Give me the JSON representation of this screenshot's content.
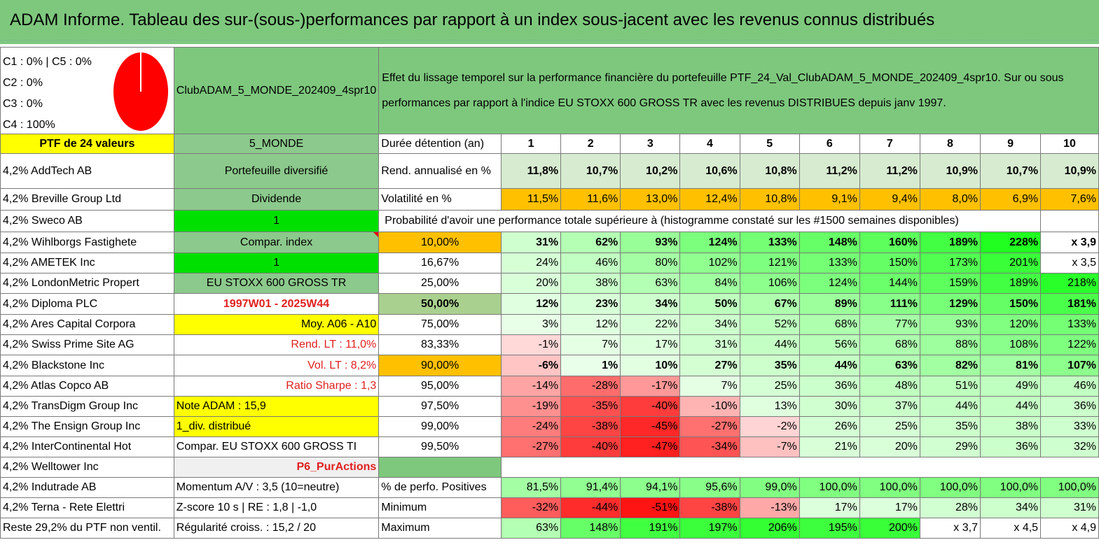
{
  "title": "ADAM Informe. Tableau des sur-(sous-)performances par rapport à un index sous-jacent avec les revenus connus distribués",
  "legend": {
    "c1c5": "C1 : 0% | C5 : 0%",
    "c2": "C2 : 0%",
    "c3": "C3 : 0%",
    "c4": "C4 : 100%"
  },
  "fund_name": "ClubADAM_5_MONDE_202409_4spr10",
  "description": "Effet du lissage temporel sur la performance financière du portefeuille PTF_24_Val_ClubADAM_5_MONDE_202409_4spr10. Sur ou sous performances par rapport à l'indice EU STOXX 600 GROSS TR avec les revenus DISTRIBUES depuis janv 1997.",
  "colors": {
    "green_header": "#7ec87e",
    "yellow": "#ffff00",
    "orange": "#ffc000",
    "bright_green": "#00e000",
    "red_text": "#e02020"
  },
  "left_col": {
    "header": "PTF de 24 valeurs",
    "holdings": [
      "4,2% AddTech AB",
      "4,2% Breville Group Ltd",
      "4,2% Sweco AB",
      "4,2% Wihlborgs Fastighete",
      "4,2% AMETEK Inc",
      "4,2% LondonMetric Propert",
      "4,2% Diploma PLC",
      "4,2% Ares Capital Corpora",
      "4,2% Swiss Prime Site AG",
      "4,2% Blackstone Inc",
      "4,2% Atlas Copco AB",
      "4,2% TransDigm Group Inc",
      "4,2% The Ensign Group Inc",
      "4,2% InterContinental Hot",
      "4,2% Welltower Inc",
      "4,2% Indutrade AB",
      "4,2% Terna - Rete Elettri",
      "Reste 29,2% du PTF non ventil."
    ]
  },
  "mid_col": {
    "header": "5_MONDE",
    "items": [
      "Portefeuille diversifié",
      "Dividende",
      "1",
      "Compar. index",
      "1",
      "EU STOXX 600 GROSS TR",
      "1997W01 - 2025W44",
      "Moy. A06 - A10",
      "Rend. LT : 11,0%",
      "Vol. LT : 8,2%",
      "Ratio Sharpe : 1,3",
      "Note ADAM : 15,9",
      "1_div. distribué",
      "Compar. EU STOXX 600 GROSS TI",
      "P6_PurActions",
      "Momentum A/V : 3,5 (10=neutre)",
      "Z-score 10 s | RE : 1,8 | -1,0",
      "Régularité croiss. : 15,2 / 20"
    ]
  },
  "grid": {
    "duration_label": "Durée détention (an)",
    "years": [
      "1",
      "2",
      "3",
      "4",
      "5",
      "6",
      "7",
      "8",
      "9",
      "10"
    ],
    "rend_label": "Rend. annualisé en %",
    "rend": [
      "11,8%",
      "10,7%",
      "10,2%",
      "10,6%",
      "10,8%",
      "11,2%",
      "11,2%",
      "10,9%",
      "10,7%",
      "10,9%"
    ],
    "vol_label": "Volatilité en %",
    "vol": [
      "11,5%",
      "11,6%",
      "13,0%",
      "12,4%",
      "10,8%",
      "9,1%",
      "9,4%",
      "8,0%",
      "6,9%",
      "7,6%"
    ],
    "prob_label": "Probabilité d'avoir une performance totale supérieure à (histogramme constaté sur les #1500 semaines disponibles)",
    "percentiles": [
      {
        "p": "10,00%",
        "v": [
          "31%",
          "62%",
          "93%",
          "124%",
          "133%",
          "148%",
          "160%",
          "189%",
          "228%",
          "x 3,9"
        ]
      },
      {
        "p": "16,67%",
        "v": [
          "24%",
          "46%",
          "80%",
          "102%",
          "121%",
          "133%",
          "150%",
          "173%",
          "201%",
          "x 3,5"
        ]
      },
      {
        "p": "25,00%",
        "v": [
          "20%",
          "38%",
          "63%",
          "84%",
          "106%",
          "124%",
          "144%",
          "159%",
          "189%",
          "218%"
        ]
      },
      {
        "p": "50,00%",
        "v": [
          "12%",
          "23%",
          "34%",
          "50%",
          "67%",
          "89%",
          "111%",
          "129%",
          "150%",
          "181%"
        ]
      },
      {
        "p": "75,00%",
        "v": [
          "3%",
          "12%",
          "22%",
          "34%",
          "52%",
          "68%",
          "77%",
          "93%",
          "120%",
          "133%"
        ]
      },
      {
        "p": "83,33%",
        "v": [
          "-1%",
          "7%",
          "17%",
          "31%",
          "44%",
          "56%",
          "68%",
          "88%",
          "108%",
          "122%"
        ]
      },
      {
        "p": "90,00%",
        "v": [
          "-6%",
          "1%",
          "10%",
          "27%",
          "35%",
          "44%",
          "63%",
          "82%",
          "81%",
          "107%"
        ]
      },
      {
        "p": "95,00%",
        "v": [
          "-14%",
          "-28%",
          "-17%",
          "7%",
          "25%",
          "36%",
          "48%",
          "51%",
          "49%",
          "46%"
        ]
      },
      {
        "p": "97,50%",
        "v": [
          "-19%",
          "-35%",
          "-40%",
          "-10%",
          "13%",
          "30%",
          "37%",
          "44%",
          "44%",
          "36%"
        ]
      },
      {
        "p": "99,00%",
        "v": [
          "-24%",
          "-38%",
          "-45%",
          "-27%",
          "-2%",
          "26%",
          "25%",
          "35%",
          "38%",
          "33%"
        ]
      },
      {
        "p": "99,50%",
        "v": [
          "-27%",
          "-40%",
          "-47%",
          "-34%",
          "-7%",
          "21%",
          "20%",
          "29%",
          "36%",
          "32%"
        ]
      }
    ],
    "pos_label": "% de perfo. Positives",
    "pos": [
      "81,5%",
      "91,4%",
      "94,1%",
      "95,6%",
      "99,0%",
      "100,0%",
      "100,0%",
      "100,0%",
      "100,0%",
      "100,0%"
    ],
    "min_label": "Minimum",
    "min": [
      "-32%",
      "-44%",
      "-51%",
      "-38%",
      "-13%",
      "17%",
      "17%",
      "28%",
      "34%",
      "31%"
    ],
    "max_label": "Maximum",
    "max": [
      "63%",
      "148%",
      "191%",
      "197%",
      "206%",
      "195%",
      "200%",
      "x 3,7",
      "x 4,5",
      "x 4,9"
    ]
  }
}
